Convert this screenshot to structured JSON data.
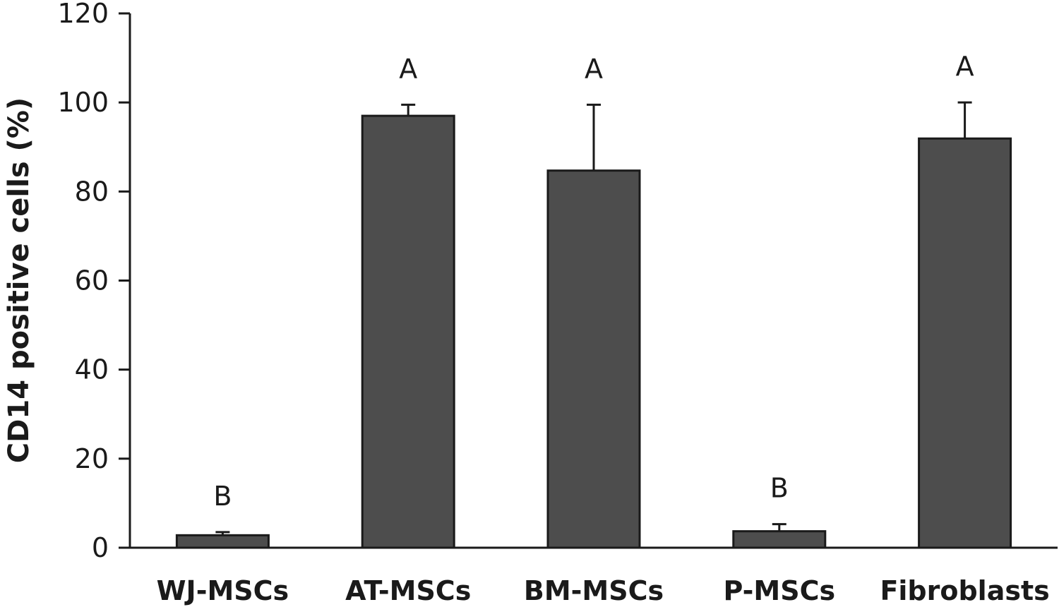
{
  "chart_data": {
    "type": "bar",
    "title": "",
    "xlabel": "",
    "ylabel": "CD14 positive cells (%)",
    "ylim": [
      0,
      120
    ],
    "yticks": [
      0,
      20,
      40,
      60,
      80,
      100,
      120
    ],
    "grid": false,
    "legend": "none",
    "bar_color": "#4d4d4d",
    "categories": [
      "WJ-MSCs",
      "AT-MSCs",
      "BM-MSCs",
      "P-MSCs",
      "Fibroblasts"
    ],
    "values": [
      2.8,
      97,
      84.7,
      3.7,
      91.9
    ],
    "error_upper": [
      0.7,
      2.5,
      14.8,
      1.6,
      8.1
    ],
    "significance": [
      "B",
      "A",
      "A",
      "B",
      "A"
    ]
  }
}
